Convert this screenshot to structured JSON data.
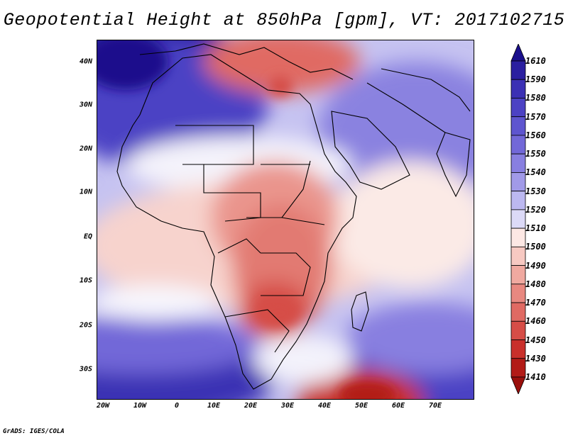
{
  "title": "Geopotential Height at 850hPa [gpm], VT: 2017102715",
  "footer": "GrADS: IGES/COLA",
  "y_axis_labels": [
    "40N",
    "30N",
    "20N",
    "10N",
    "EQ",
    "10S",
    "20S",
    "30S"
  ],
  "x_axis_labels": [
    "20W",
    "10W",
    "0",
    "10E",
    "20E",
    "30E",
    "40E",
    "50E",
    "60E",
    "70E"
  ],
  "colorbar": {
    "ticks": [
      "1610",
      "1590",
      "1580",
      "1570",
      "1560",
      "1550",
      "1540",
      "1530",
      "1520",
      "1510",
      "1500",
      "1490",
      "1480",
      "1470",
      "1460",
      "1450",
      "1430",
      "1410"
    ],
    "colors": [
      "#1a0f8c",
      "#2a1fa0",
      "#3b30b4",
      "#4c42c4",
      "#5e55cf",
      "#7268d8",
      "#887fe0",
      "#a19ae8",
      "#bcb8f0",
      "#dcdaf7",
      "#fde8e4",
      "#f7c9c2",
      "#f0a9a0",
      "#e88880",
      "#e06a63",
      "#d64d47",
      "#c9302b",
      "#b21b17",
      "#9a0f0c"
    ]
  }
}
